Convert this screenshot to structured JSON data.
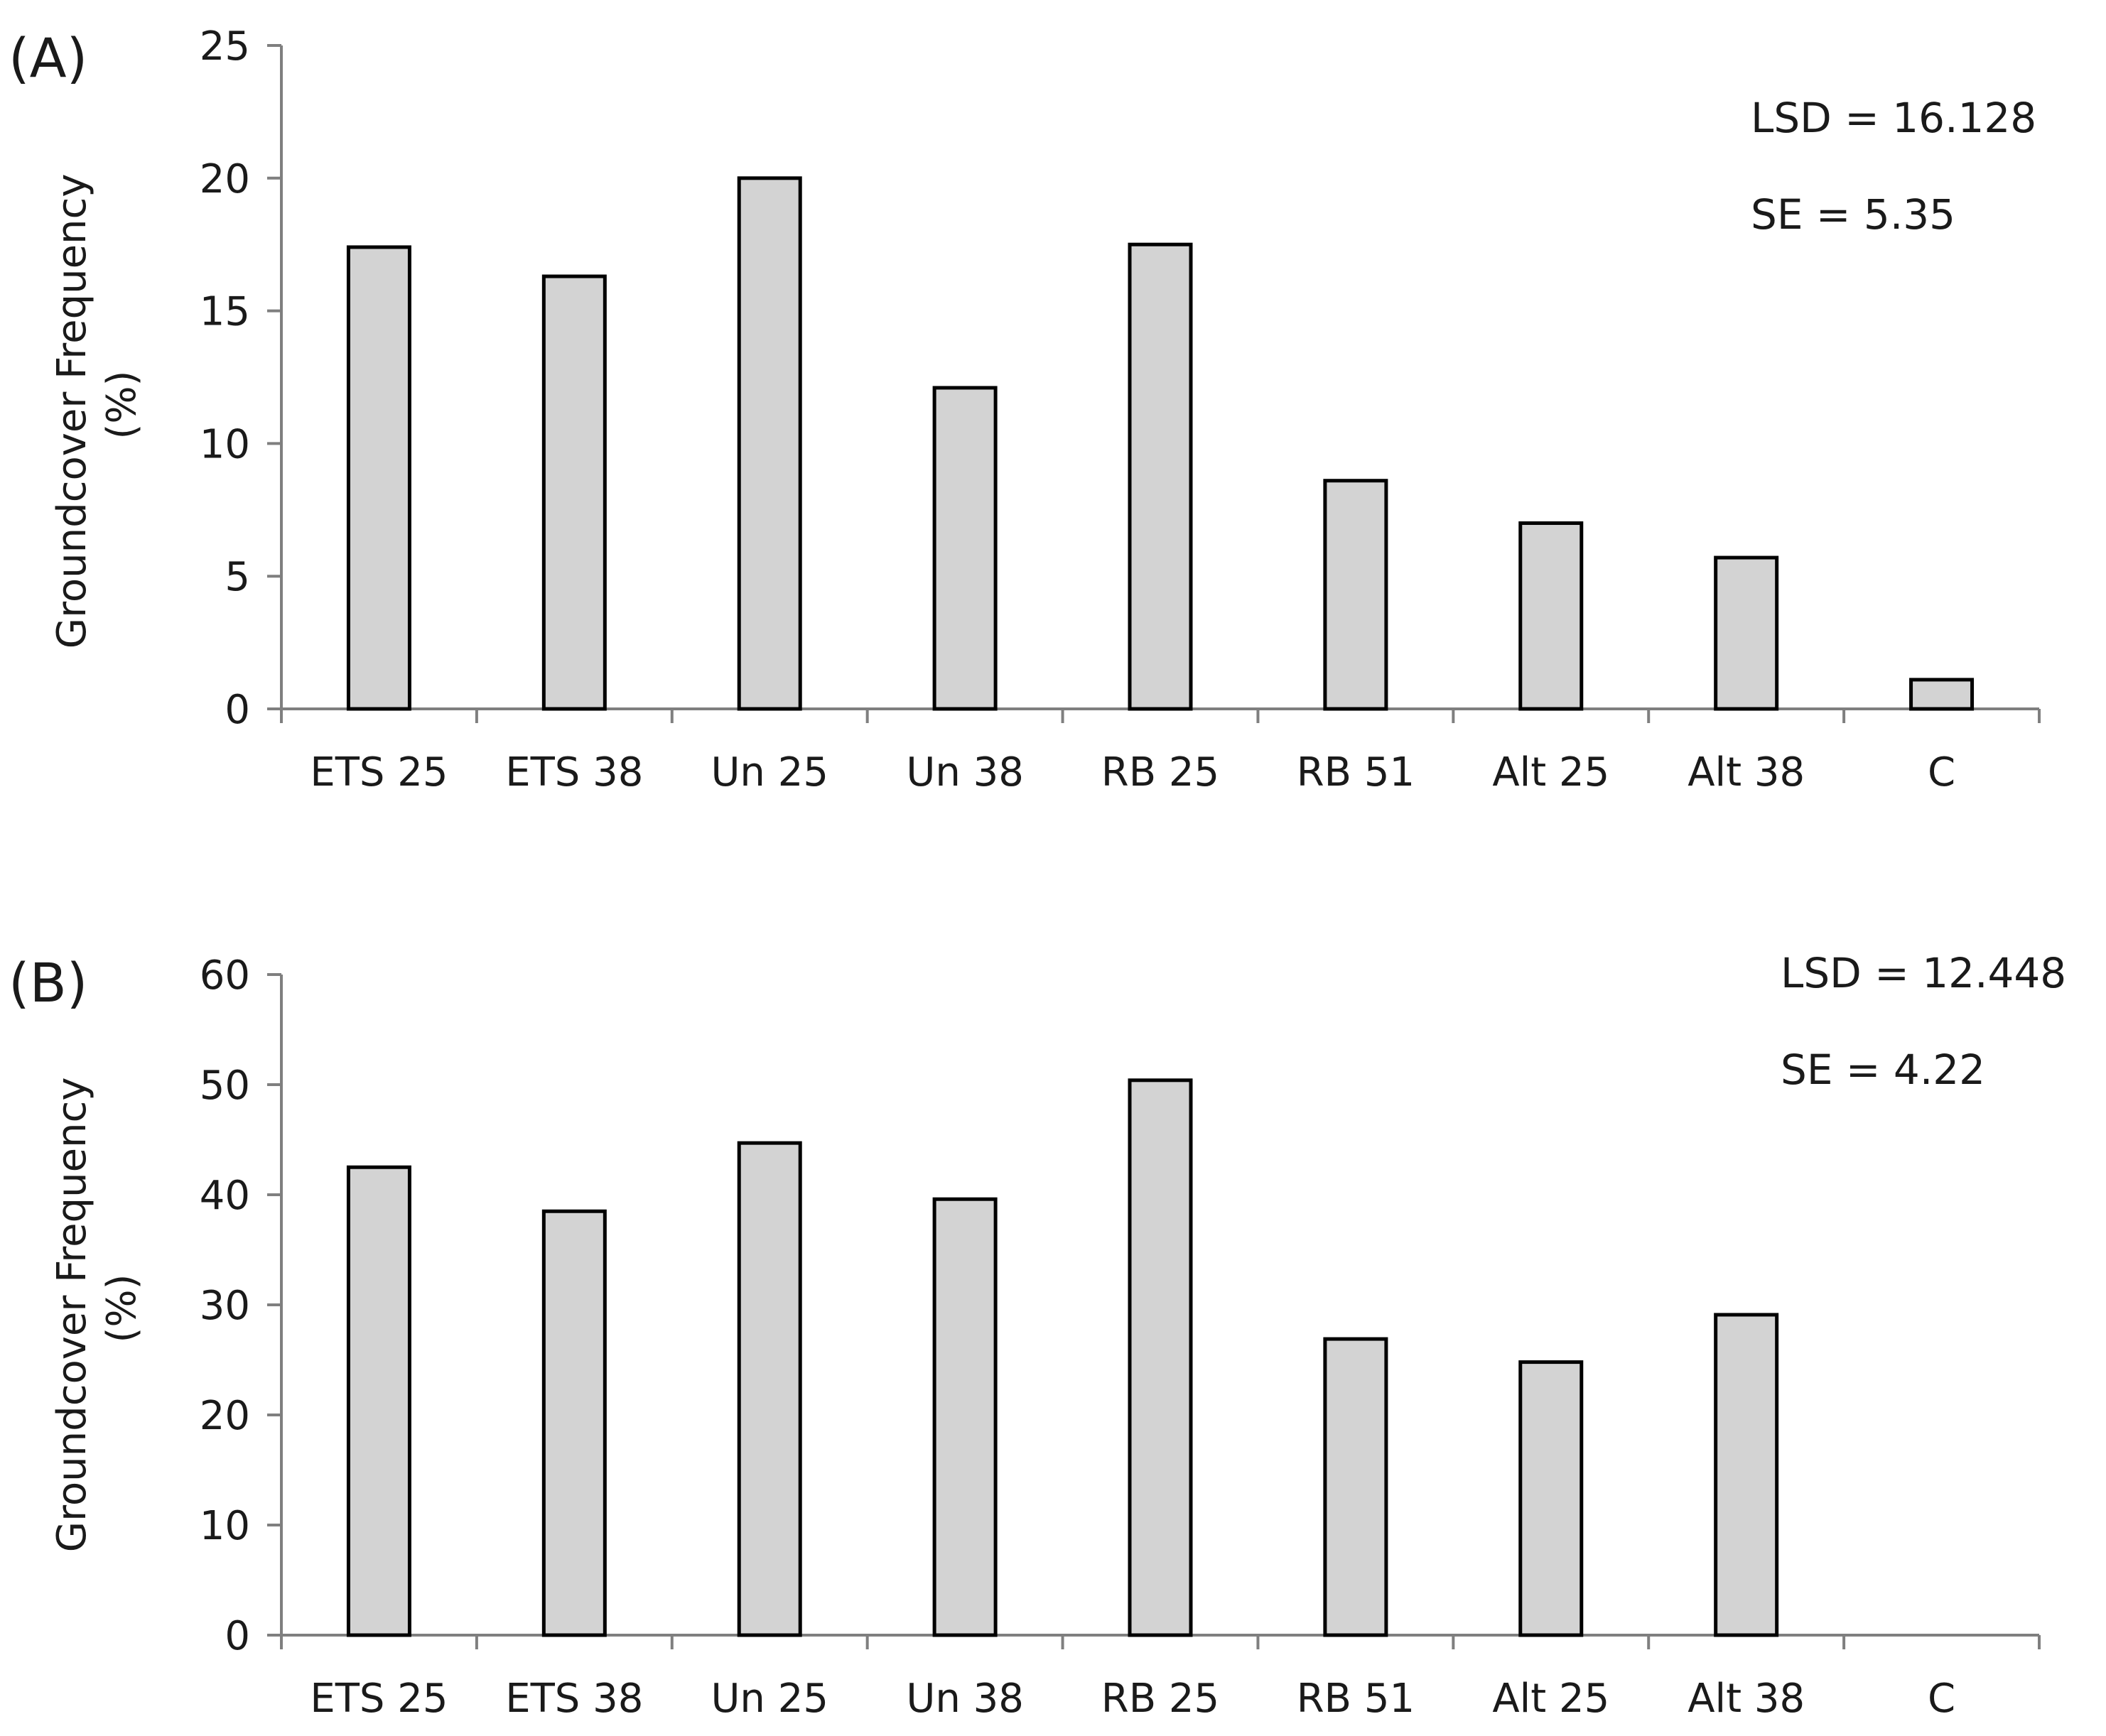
{
  "chart_data": [
    {
      "type": "bar",
      "panel_label": "(A)",
      "ylabel": [
        "Groundcover Frequency",
        "(%)"
      ],
      "categories": [
        "ETS 25",
        "ETS 38",
        "Un 25",
        "Un 38",
        "RB 25",
        "RB 51",
        "Alt 25",
        "Alt 38",
        "C"
      ],
      "values": [
        17.4,
        16.3,
        20.0,
        12.1,
        17.5,
        8.6,
        7.0,
        5.7,
        1.1
      ],
      "ylim": [
        0,
        25
      ],
      "yticks": [
        0,
        5,
        10,
        15,
        20,
        25
      ],
      "annotations": [
        "LSD = 16.128",
        "SE = 5.35"
      ],
      "bar_fill": "#d3d3d3",
      "bar_stroke": "#000000",
      "axis_color": "#7f7f7f",
      "grid": false
    },
    {
      "type": "bar",
      "panel_label": "(B)",
      "ylabel": [
        "Groundcover Frequency",
        "(%)"
      ],
      "categories": [
        "ETS 25",
        "ETS 38",
        "Un 25",
        "Un 38",
        "RB 25",
        "RB 51",
        "Alt 25",
        "Alt 38",
        "C"
      ],
      "values": [
        42.5,
        38.5,
        44.7,
        39.6,
        50.4,
        26.9,
        24.8,
        29.1,
        0
      ],
      "ylim": [
        0,
        60
      ],
      "yticks": [
        0,
        10,
        20,
        30,
        40,
        50,
        60
      ],
      "annotations": [
        "LSD = 12.448",
        "SE = 4.22"
      ],
      "bar_fill": "#d3d3d3",
      "bar_stroke": "#000000",
      "axis_color": "#7f7f7f",
      "grid": false
    }
  ]
}
